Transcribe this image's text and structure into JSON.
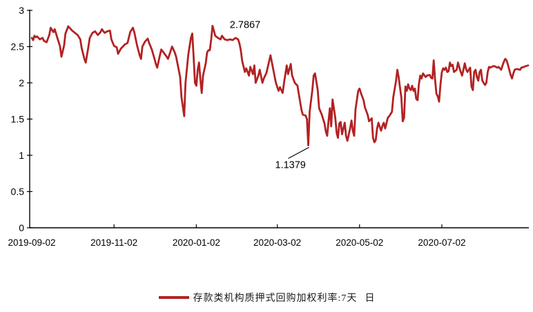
{
  "colors": {
    "line": "#B22222",
    "axis": "#000000",
    "text": "#000000",
    "background": "#FFFFFF"
  },
  "chart_data": {
    "type": "line",
    "title": "",
    "grid": false,
    "legend": {
      "position": "bottom-center",
      "series_label": "存款类机构质押式回购加权利率:7天",
      "frequency_label": "日",
      "line_color": "#B22222"
    },
    "x_axis": {
      "unit": "date",
      "start_date": "2019-09-02",
      "tick_labels": [
        "2019-09-02",
        "2019-11-02",
        "2020-01-02",
        "2020-03-02",
        "2020-05-02",
        "2020-07-02"
      ],
      "tick_day_offsets": [
        0,
        61,
        122,
        182,
        243,
        304
      ],
      "range_days": [
        0,
        368
      ]
    },
    "y_axis": {
      "tick_labels": [
        "0",
        "0.5",
        "1",
        "1.5",
        "2",
        "2.5",
        "3"
      ],
      "tick_values": [
        0,
        0.5,
        1,
        1.5,
        2,
        2.5,
        3
      ],
      "range": [
        0,
        3
      ]
    },
    "annotations": [
      {
        "text": "2.7867",
        "kind": "max",
        "day": 134,
        "value": 2.7867,
        "has_leader_line": false
      },
      {
        "text": "1.1379",
        "kind": "min",
        "day": 205,
        "value": 1.1379,
        "has_leader_line": true
      }
    ],
    "series": [
      {
        "name": "存款类机构质押式回购加权利率:7天",
        "color": "#B22222",
        "x_unit": "days_since_2019-09-02",
        "points": [
          [
            0,
            2.62
          ],
          [
            1,
            2.59
          ],
          [
            2,
            2.65
          ],
          [
            3,
            2.63
          ],
          [
            4,
            2.64
          ],
          [
            6,
            2.6
          ],
          [
            8,
            2.62
          ],
          [
            9,
            2.58
          ],
          [
            11,
            2.56
          ],
          [
            13,
            2.66
          ],
          [
            14,
            2.76
          ],
          [
            16,
            2.7
          ],
          [
            17,
            2.74
          ],
          [
            19,
            2.62
          ],
          [
            21,
            2.5
          ],
          [
            22,
            2.36
          ],
          [
            24,
            2.52
          ],
          [
            25,
            2.68
          ],
          [
            27,
            2.78
          ],
          [
            28,
            2.76
          ],
          [
            30,
            2.72
          ],
          [
            32,
            2.69
          ],
          [
            34,
            2.66
          ],
          [
            36,
            2.6
          ],
          [
            37,
            2.48
          ],
          [
            39,
            2.33
          ],
          [
            40,
            2.28
          ],
          [
            42,
            2.5
          ],
          [
            43,
            2.62
          ],
          [
            45,
            2.69
          ],
          [
            47,
            2.71
          ],
          [
            49,
            2.66
          ],
          [
            51,
            2.7
          ],
          [
            52,
            2.74
          ],
          [
            54,
            2.69
          ],
          [
            56,
            2.71
          ],
          [
            58,
            2.72
          ],
          [
            59,
            2.6
          ],
          [
            61,
            2.51
          ],
          [
            63,
            2.49
          ],
          [
            64,
            2.4
          ],
          [
            66,
            2.47
          ],
          [
            68,
            2.51
          ],
          [
            69,
            2.53
          ],
          [
            71,
            2.55
          ],
          [
            73,
            2.7
          ],
          [
            75,
            2.76
          ],
          [
            76,
            2.7
          ],
          [
            78,
            2.52
          ],
          [
            80,
            2.38
          ],
          [
            81,
            2.33
          ],
          [
            82,
            2.5
          ],
          [
            84,
            2.57
          ],
          [
            86,
            2.61
          ],
          [
            87,
            2.55
          ],
          [
            89,
            2.46
          ],
          [
            91,
            2.33
          ],
          [
            92,
            2.26
          ],
          [
            93,
            2.21
          ],
          [
            95,
            2.38
          ],
          [
            96,
            2.46
          ],
          [
            98,
            2.41
          ],
          [
            100,
            2.36
          ],
          [
            101,
            2.33
          ],
          [
            103,
            2.44
          ],
          [
            104,
            2.5
          ],
          [
            106,
            2.42
          ],
          [
            107,
            2.36
          ],
          [
            108,
            2.27
          ],
          [
            110,
            2.08
          ],
          [
            111,
            1.8
          ],
          [
            113,
            1.54
          ],
          [
            114,
            2.0
          ],
          [
            116,
            2.38
          ],
          [
            118,
            2.62
          ],
          [
            119,
            2.68
          ],
          [
            120,
            2.35
          ],
          [
            121,
            2.0
          ],
          [
            122,
            1.96
          ],
          [
            123,
            2.18
          ],
          [
            124,
            2.28
          ],
          [
            125,
            2.05
          ],
          [
            126,
            1.86
          ],
          [
            127,
            2.1
          ],
          [
            129,
            2.27
          ],
          [
            130,
            2.42
          ],
          [
            131,
            2.45
          ],
          [
            132,
            2.45
          ],
          [
            133,
            2.6
          ],
          [
            134,
            2.7867
          ],
          [
            135,
            2.72
          ],
          [
            136,
            2.65
          ],
          [
            138,
            2.62
          ],
          [
            140,
            2.6
          ],
          [
            141,
            2.65
          ],
          [
            143,
            2.6
          ],
          [
            145,
            2.59
          ],
          [
            147,
            2.6
          ],
          [
            149,
            2.59
          ],
          [
            151,
            2.62
          ],
          [
            153,
            2.6
          ],
          [
            154,
            2.54
          ],
          [
            155,
            2.45
          ],
          [
            156,
            2.3
          ],
          [
            158,
            2.15
          ],
          [
            159,
            2.2
          ],
          [
            161,
            2.1
          ],
          [
            162,
            2.22
          ],
          [
            164,
            2.12
          ],
          [
            165,
            2.24
          ],
          [
            166,
            2.0
          ],
          [
            168,
            2.1
          ],
          [
            169,
            2.18
          ],
          [
            171,
            2.0
          ],
          [
            172,
            2.06
          ],
          [
            174,
            2.14
          ],
          [
            175,
            2.22
          ],
          [
            177,
            2.38
          ],
          [
            179,
            2.19
          ],
          [
            181,
            2.0
          ],
          [
            183,
            1.89
          ],
          [
            184,
            1.94
          ],
          [
            186,
            1.86
          ],
          [
            187,
            2.0
          ],
          [
            189,
            2.24
          ],
          [
            190,
            2.12
          ],
          [
            192,
            2.26
          ],
          [
            193,
            2.1
          ],
          [
            195,
            2.0
          ],
          [
            197,
            1.96
          ],
          [
            198,
            1.84
          ],
          [
            200,
            1.62
          ],
          [
            201,
            1.56
          ],
          [
            203,
            1.55
          ],
          [
            204,
            1.5
          ],
          [
            205,
            1.1379
          ],
          [
            206,
            1.6
          ],
          [
            208,
            1.9
          ],
          [
            209,
            2.1
          ],
          [
            210,
            2.13
          ],
          [
            212,
            1.9
          ],
          [
            213,
            1.65
          ],
          [
            215,
            1.56
          ],
          [
            217,
            1.44
          ],
          [
            218,
            1.33
          ],
          [
            219,
            1.27
          ],
          [
            220,
            1.47
          ],
          [
            221,
            1.65
          ],
          [
            222,
            1.4
          ],
          [
            223,
            1.77
          ],
          [
            225,
            1.52
          ],
          [
            226,
            1.31
          ],
          [
            227,
            1.24
          ],
          [
            228,
            1.44
          ],
          [
            229,
            1.46
          ],
          [
            230,
            1.29
          ],
          [
            232,
            1.45
          ],
          [
            233,
            1.27
          ],
          [
            234,
            1.2
          ],
          [
            236,
            1.37
          ],
          [
            237,
            1.48
          ],
          [
            238,
            1.34
          ],
          [
            239,
            1.27
          ],
          [
            240,
            1.63
          ],
          [
            242,
            1.89
          ],
          [
            243,
            1.92
          ],
          [
            244,
            1.86
          ],
          [
            246,
            1.76
          ],
          [
            247,
            1.66
          ],
          [
            249,
            1.56
          ],
          [
            250,
            1.47
          ],
          [
            252,
            1.51
          ],
          [
            253,
            1.24
          ],
          [
            254,
            1.18
          ],
          [
            255,
            1.21
          ],
          [
            256,
            1.37
          ],
          [
            257,
            1.45
          ],
          [
            258,
            1.39
          ],
          [
            259,
            1.34
          ],
          [
            260,
            1.41
          ],
          [
            261,
            1.45
          ],
          [
            262,
            1.37
          ],
          [
            264,
            1.52
          ],
          [
            265,
            1.54
          ],
          [
            267,
            1.6
          ],
          [
            268,
            1.8
          ],
          [
            270,
            2.02
          ],
          [
            271,
            2.18
          ],
          [
            272,
            2.08
          ],
          [
            273,
            1.93
          ],
          [
            274,
            1.8
          ],
          [
            275,
            1.47
          ],
          [
            276,
            1.52
          ],
          [
            277,
            1.95
          ],
          [
            278,
            1.89
          ],
          [
            279,
            1.98
          ],
          [
            280,
            1.92
          ],
          [
            281,
            1.9
          ],
          [
            282,
            1.96
          ],
          [
            283,
            1.89
          ],
          [
            284,
            1.92
          ],
          [
            285,
            1.78
          ],
          [
            286,
            1.76
          ],
          [
            287,
            1.98
          ],
          [
            288,
            2.1
          ],
          [
            289,
            2.06
          ],
          [
            290,
            2.13
          ],
          [
            292,
            2.08
          ],
          [
            293,
            2.1
          ],
          [
            295,
            2.11
          ],
          [
            296,
            2.07
          ],
          [
            297,
            2.06
          ],
          [
            298,
            2.31
          ],
          [
            299,
            2.04
          ],
          [
            300,
            1.85
          ],
          [
            301,
            1.81
          ],
          [
            302,
            1.74
          ],
          [
            303,
            1.98
          ],
          [
            304,
            2.15
          ],
          [
            305,
            2.2
          ],
          [
            306,
            2.18
          ],
          [
            307,
            2.21
          ],
          [
            308,
            2.15
          ],
          [
            309,
            2.16
          ],
          [
            310,
            2.28
          ],
          [
            311,
            2.23
          ],
          [
            312,
            2.25
          ],
          [
            313,
            2.15
          ],
          [
            315,
            2.18
          ],
          [
            316,
            2.28
          ],
          [
            317,
            2.21
          ],
          [
            318,
            2.15
          ],
          [
            319,
            2.1
          ],
          [
            320,
            2.18
          ],
          [
            321,
            2.27
          ],
          [
            322,
            2.19
          ],
          [
            323,
            2.15
          ],
          [
            324,
            2.18
          ],
          [
            325,
            2.21
          ],
          [
            326,
            1.95
          ],
          [
            327,
            1.9
          ],
          [
            328,
            2.15
          ],
          [
            329,
            2.18
          ],
          [
            330,
            2.08
          ],
          [
            331,
            2.03
          ],
          [
            332,
            2.15
          ],
          [
            333,
            2.18
          ],
          [
            334,
            2.03
          ],
          [
            336,
            1.97
          ],
          [
            337,
            2.0
          ],
          [
            338,
            2.15
          ],
          [
            339,
            2.22
          ],
          [
            340,
            2.21
          ],
          [
            341,
            2.22
          ],
          [
            342,
            2.23
          ],
          [
            343,
            2.23
          ],
          [
            345,
            2.21
          ],
          [
            346,
            2.22
          ],
          [
            347,
            2.2
          ],
          [
            348,
            2.18
          ],
          [
            349,
            2.24
          ],
          [
            350,
            2.29
          ],
          [
            351,
            2.33
          ],
          [
            352,
            2.31
          ],
          [
            353,
            2.25
          ],
          [
            354,
            2.18
          ],
          [
            355,
            2.11
          ],
          [
            356,
            2.06
          ],
          [
            357,
            2.13
          ],
          [
            358,
            2.18
          ],
          [
            359,
            2.19
          ],
          [
            360,
            2.19
          ],
          [
            362,
            2.18
          ],
          [
            363,
            2.21
          ],
          [
            365,
            2.22
          ],
          [
            366,
            2.23
          ],
          [
            368,
            2.24
          ]
        ]
      }
    ]
  }
}
